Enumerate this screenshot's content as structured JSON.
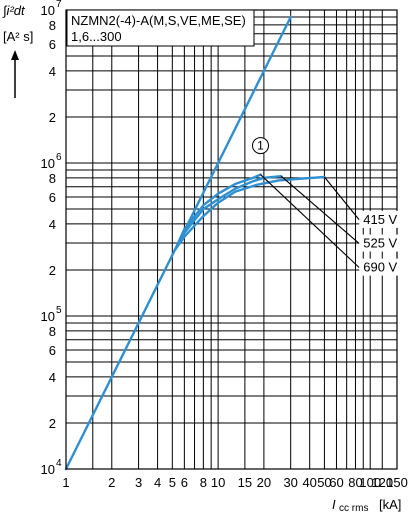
{
  "chart_data": {
    "type": "line",
    "x_scale": "log",
    "y_scale": "log",
    "xlim": [
      1,
      150
    ],
    "ylim": [
      10000,
      10000000
    ],
    "grid": true,
    "title": "NZMN2(-4)-A(M,S,VE,ME,SE)",
    "subtitle": "1,6...300",
    "ylabel_line1": "∫i²dt",
    "ylabel_line2": "[A² s]",
    "xlabel_main": "I",
    "xlabel_sub": "cc rms",
    "xlabel_unit": "[kA]",
    "x_ticks": [
      {
        "v": 1,
        "t": "1"
      },
      {
        "v": 2,
        "t": "2"
      },
      {
        "v": 3,
        "t": "3"
      },
      {
        "v": 4,
        "t": "4"
      },
      {
        "v": 5,
        "t": "5"
      },
      {
        "v": 6,
        "t": "6"
      },
      {
        "v": 8,
        "t": "8"
      },
      {
        "v": 10,
        "t": "10"
      },
      {
        "v": 15,
        "t": "15"
      },
      {
        "v": 20,
        "t": "20"
      },
      {
        "v": 30,
        "t": "30"
      },
      {
        "v": 40,
        "t": "40"
      },
      {
        "v": 50,
        "t": "50"
      },
      {
        "v": 60,
        "t": "60"
      },
      {
        "v": 80,
        "t": "80"
      },
      {
        "v": 100,
        "t": "100"
      },
      {
        "v": 120,
        "t": "120"
      },
      {
        "v": 150,
        "t": "150"
      }
    ],
    "y_ticks": [
      {
        "v": 10000,
        "m": "10",
        "e": "4"
      },
      {
        "v": 20000,
        "m": "2",
        "e": ""
      },
      {
        "v": 40000,
        "m": "4",
        "e": ""
      },
      {
        "v": 60000,
        "m": "6",
        "e": ""
      },
      {
        "v": 80000,
        "m": "8",
        "e": ""
      },
      {
        "v": 100000,
        "m": "10",
        "e": "5"
      },
      {
        "v": 200000,
        "m": "2",
        "e": ""
      },
      {
        "v": 400000,
        "m": "4",
        "e": ""
      },
      {
        "v": 600000,
        "m": "6",
        "e": ""
      },
      {
        "v": 800000,
        "m": "8",
        "e": ""
      },
      {
        "v": 1000000,
        "m": "10",
        "e": "6"
      },
      {
        "v": 2000000,
        "m": "2",
        "e": ""
      },
      {
        "v": 4000000,
        "m": "4",
        "e": ""
      },
      {
        "v": 6000000,
        "m": "6",
        "e": ""
      },
      {
        "v": 8000000,
        "m": "8",
        "e": ""
      },
      {
        "v": 10000000,
        "m": "10",
        "e": "7"
      }
    ],
    "x_grid": [
      1,
      1.5,
      2,
      3,
      4,
      5,
      6,
      7,
      8,
      9,
      10,
      15,
      20,
      30,
      40,
      50,
      60,
      70,
      80,
      90,
      100,
      120,
      150
    ],
    "y_grid": [
      10000,
      20000,
      30000,
      40000,
      50000,
      60000,
      70000,
      80000,
      90000,
      100000,
      200000,
      300000,
      400000,
      500000,
      600000,
      700000,
      800000,
      900000,
      1000000,
      2000000,
      3000000,
      4000000,
      5000000,
      6000000,
      7000000,
      8000000,
      9000000,
      10000000
    ],
    "series": [
      {
        "name": "1",
        "color": "#2e8fd1",
        "points": [
          [
            1,
            10000
          ],
          [
            30,
            9000000
          ]
        ]
      },
      {
        "name": "415 V",
        "color": "#2e8fd1",
        "points": [
          [
            5.2,
            270000
          ],
          [
            6,
            330000
          ],
          [
            8,
            450000
          ],
          [
            10,
            550000
          ],
          [
            13,
            650000
          ],
          [
            18,
            720000
          ],
          [
            25,
            770000
          ],
          [
            35,
            790000
          ],
          [
            50,
            810000
          ]
        ]
      },
      {
        "name": "525 V",
        "color": "#2e8fd1",
        "points": [
          [
            5.2,
            270000
          ],
          [
            6,
            350000
          ],
          [
            8,
            500000
          ],
          [
            10,
            580000
          ],
          [
            13,
            680000
          ],
          [
            17,
            760000
          ],
          [
            20,
            800000
          ],
          [
            26,
            820000
          ]
        ]
      },
      {
        "name": "690 V",
        "color": "#2e8fd1",
        "points": [
          [
            5.2,
            270000
          ],
          [
            6,
            370000
          ],
          [
            8,
            530000
          ],
          [
            10,
            630000
          ],
          [
            13,
            730000
          ],
          [
            17,
            800000
          ],
          [
            19,
            840000
          ]
        ]
      }
    ],
    "annotations": [
      {
        "id": "curve-1-label",
        "text": "1",
        "x": 19,
        "y": 1300000
      },
      {
        "id": "label-415",
        "text": "415 V",
        "x": 90,
        "y": 400000
      },
      {
        "id": "label-525",
        "text": "525 V",
        "x": 90,
        "y": 280000
      },
      {
        "id": "label-690",
        "text": "690 V",
        "x": 90,
        "y": 195000
      }
    ]
  }
}
